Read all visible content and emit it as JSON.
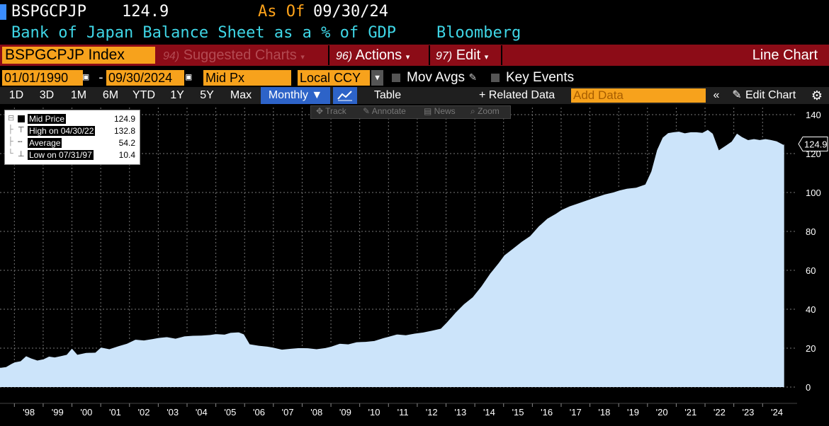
{
  "header": {
    "ticker": "BSPGCPJP",
    "last_value": "124.9",
    "as_of_label": "As Of",
    "as_of_date": "09/30/24",
    "description": "Bank of Japan Balance Sheet as a % of GDP",
    "source": "Bloomberg"
  },
  "menu": {
    "index": "BSPGCPJP Index",
    "suggested_num": "94)",
    "suggested": "Suggested Charts",
    "actions_num": "96)",
    "actions": "Actions",
    "edit_num": "97)",
    "edit": "Edit",
    "chart_type": "Line Chart"
  },
  "controls": {
    "start_date": "01/01/1990",
    "dash": "-",
    "end_date": "09/30/2024",
    "field": "Mid Px",
    "currency": "Local CCY",
    "mov_avgs": "Mov Avgs",
    "key_events": "Key Events"
  },
  "toolbar": {
    "periods": [
      "1D",
      "3D",
      "1M",
      "6M",
      "YTD",
      "1Y",
      "5Y",
      "Max"
    ],
    "frequency": "Monthly ▼",
    "table": "Table",
    "related": "+ Related Data",
    "add_data_placeholder": "Add Data",
    "edit_chart": "Edit Chart"
  },
  "overlay_tools": [
    "Track",
    "Annotate",
    "News",
    "Zoom"
  ],
  "legend": {
    "rows": [
      {
        "label": "Mid Price",
        "value": "124.9"
      },
      {
        "label": "High on 04/30/22",
        "value": "132.8"
      },
      {
        "label": "Average",
        "value": "54.2"
      },
      {
        "label": "Low on 07/31/97",
        "value": "10.4"
      }
    ]
  },
  "colors": {
    "accent_orange": "#f7a21c",
    "header_cyan": "#3fd6e6",
    "menu_red": "#8c0c17",
    "area_fill": "#cce4fa",
    "line": "#000000"
  },
  "chart_data": {
    "type": "area",
    "last_label": "124.9",
    "ylim": [
      0,
      140
    ],
    "yticks": [
      0,
      20,
      40,
      60,
      80,
      100,
      120,
      140
    ],
    "xlim": [
      1997.5,
      2025.2
    ],
    "xtick_labels": [
      "'98",
      "'99",
      "'00",
      "'01",
      "'02",
      "'03",
      "'04",
      "'05",
      "'06",
      "'07",
      "'08",
      "'09",
      "'10",
      "'11",
      "'12",
      "'13",
      "'14",
      "'15",
      "'16",
      "'17",
      "'18",
      "'19",
      "'20",
      "'21",
      "'22",
      "'23",
      "'24"
    ],
    "xtick_years": [
      1998,
      1999,
      2000,
      2001,
      2002,
      2003,
      2004,
      2005,
      2006,
      2007,
      2008,
      2009,
      2010,
      2011,
      2012,
      2013,
      2014,
      2015,
      2016,
      2017,
      2018,
      2019,
      2020,
      2021,
      2022,
      2023,
      2024
    ],
    "grid": true,
    "series": [
      {
        "x": [
          1997.5,
          1997.7,
          1997.9,
          1998.0,
          1998.2,
          1998.4,
          1998.6,
          1998.8,
          1999.0,
          1999.2,
          1999.4,
          1999.6,
          1999.8,
          2000.0,
          2000.2,
          2000.5,
          2000.8,
          2001.0,
          2001.3,
          2001.6,
          2001.9,
          2002.2,
          2002.5,
          2002.8,
          2003.0,
          2003.3,
          2003.6,
          2003.9,
          2004.2,
          2004.5,
          2004.8,
          2005.0,
          2005.3,
          2005.5,
          2005.8,
          2006.0,
          2006.2,
          2006.5,
          2006.8,
          2007.0,
          2007.3,
          2007.6,
          2007.9,
          2008.2,
          2008.5,
          2008.8,
          2009.0,
          2009.3,
          2009.6,
          2009.9,
          2010.2,
          2010.5,
          2010.8,
          2011.0,
          2011.3,
          2011.6,
          2011.9,
          2012.2,
          2012.5,
          2012.8,
          2013.0,
          2013.3,
          2013.6,
          2013.9,
          2014.2,
          2014.5,
          2014.8,
          2015.0,
          2015.3,
          2015.6,
          2015.9,
          2016.2,
          2016.5,
          2016.8,
          2017.0,
          2017.3,
          2017.6,
          2017.9,
          2018.2,
          2018.5,
          2018.8,
          2019.0,
          2019.3,
          2019.6,
          2019.9,
          2020.1,
          2020.3,
          2020.5,
          2020.7,
          2020.9,
          2021.1,
          2021.3,
          2021.5,
          2021.7,
          2021.9,
          2022.1,
          2022.3,
          2022.5,
          2022.7,
          2022.9,
          2023.1,
          2023.3,
          2023.5,
          2023.7,
          2023.9,
          2024.1,
          2024.3,
          2024.5,
          2024.75
        ],
        "values": [
          10.4,
          10.8,
          12.5,
          13.2,
          13.8,
          16.5,
          15.2,
          14.2,
          14.8,
          16.2,
          15.8,
          16.4,
          17.1,
          20.6,
          17.2,
          18.1,
          18.2,
          20.9,
          20.0,
          21.5,
          22.8,
          24.9,
          24.5,
          25.2,
          25.8,
          26.2,
          25.4,
          26.6,
          26.9,
          27.0,
          27.3,
          27.8,
          27.5,
          28.4,
          28.7,
          27.5,
          22.5,
          21.8,
          21.3,
          20.8,
          19.8,
          20.2,
          20.6,
          20.5,
          20.0,
          20.6,
          21.3,
          22.8,
          22.5,
          23.6,
          23.8,
          24.2,
          25.6,
          26.4,
          27.6,
          27.2,
          28.0,
          28.6,
          29.5,
          30.5,
          33.5,
          38.5,
          43.0,
          46.5,
          52.0,
          58.5,
          64.0,
          68.0,
          71.5,
          75.0,
          78.0,
          83.0,
          87.0,
          89.5,
          91.5,
          93.5,
          95.0,
          96.5,
          98.0,
          99.5,
          100.5,
          101.5,
          102.5,
          103.0,
          104.5,
          111.0,
          122.0,
          128.5,
          131.0,
          131.5,
          131.8,
          131.0,
          131.5,
          131.5,
          131.2,
          132.8,
          130.5,
          122.5,
          124.5,
          126.5,
          131.0,
          129.0,
          127.5,
          128.0,
          127.5,
          128.0,
          127.5,
          126.8,
          124.9
        ]
      }
    ]
  }
}
